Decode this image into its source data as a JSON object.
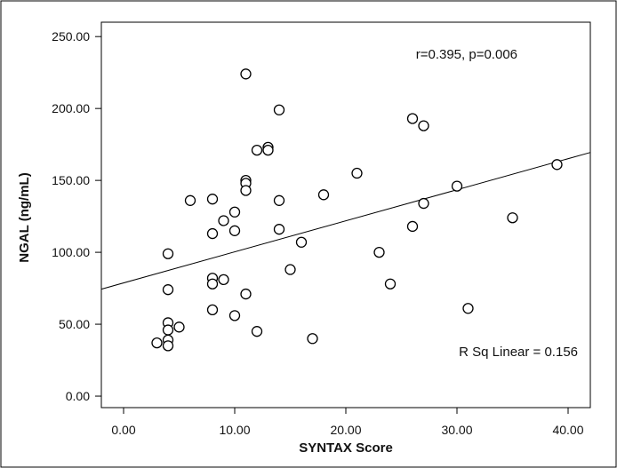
{
  "chart_data": {
    "type": "scatter",
    "title": "",
    "xlabel": "SYNTAX Score",
    "ylabel": "NGAL (ng/mL)",
    "xlim": [
      -2,
      42
    ],
    "ylim": [
      -8,
      260
    ],
    "xticks": [
      0,
      10,
      20,
      30,
      40
    ],
    "yticks": [
      0,
      50,
      100,
      150,
      200,
      250
    ],
    "xtick_labels": [
      "0.00",
      "10.00",
      "20.00",
      "30.00",
      "40.00"
    ],
    "ytick_labels": [
      "0.00",
      "50.00",
      "100.00",
      "150.00",
      "200.00",
      "250.00"
    ],
    "grid": false,
    "marker": "open-circle",
    "series": [
      {
        "x": [
          11,
          14,
          26,
          27,
          13,
          13,
          12,
          11,
          11,
          11,
          21,
          30,
          39,
          18,
          6,
          8,
          14,
          27,
          10,
          9,
          35,
          8,
          14,
          10,
          26,
          16,
          15,
          23,
          4,
          24,
          9,
          8,
          8,
          11,
          31,
          10,
          4,
          4,
          4,
          5,
          8,
          12,
          17,
          3,
          4,
          4
        ],
        "y": [
          224,
          199,
          193,
          188,
          173,
          171,
          171,
          150,
          148,
          143,
          155,
          146,
          161,
          140,
          136,
          137,
          136,
          134,
          128,
          122,
          124,
          113,
          116,
          115,
          118,
          107,
          88,
          100,
          99,
          78,
          81,
          82,
          78,
          71,
          61,
          56,
          74,
          51,
          46,
          48,
          60,
          45,
          40,
          37,
          39,
          35
        ]
      }
    ],
    "fit_line": {
      "type": "linear",
      "intercept": 78.7,
      "slope": 2.16,
      "x_range": [
        -2,
        42
      ]
    },
    "annotations": {
      "correlation": "r=0.395, p=0.006",
      "r_squared": "R Sq Linear = 0.156"
    }
  }
}
